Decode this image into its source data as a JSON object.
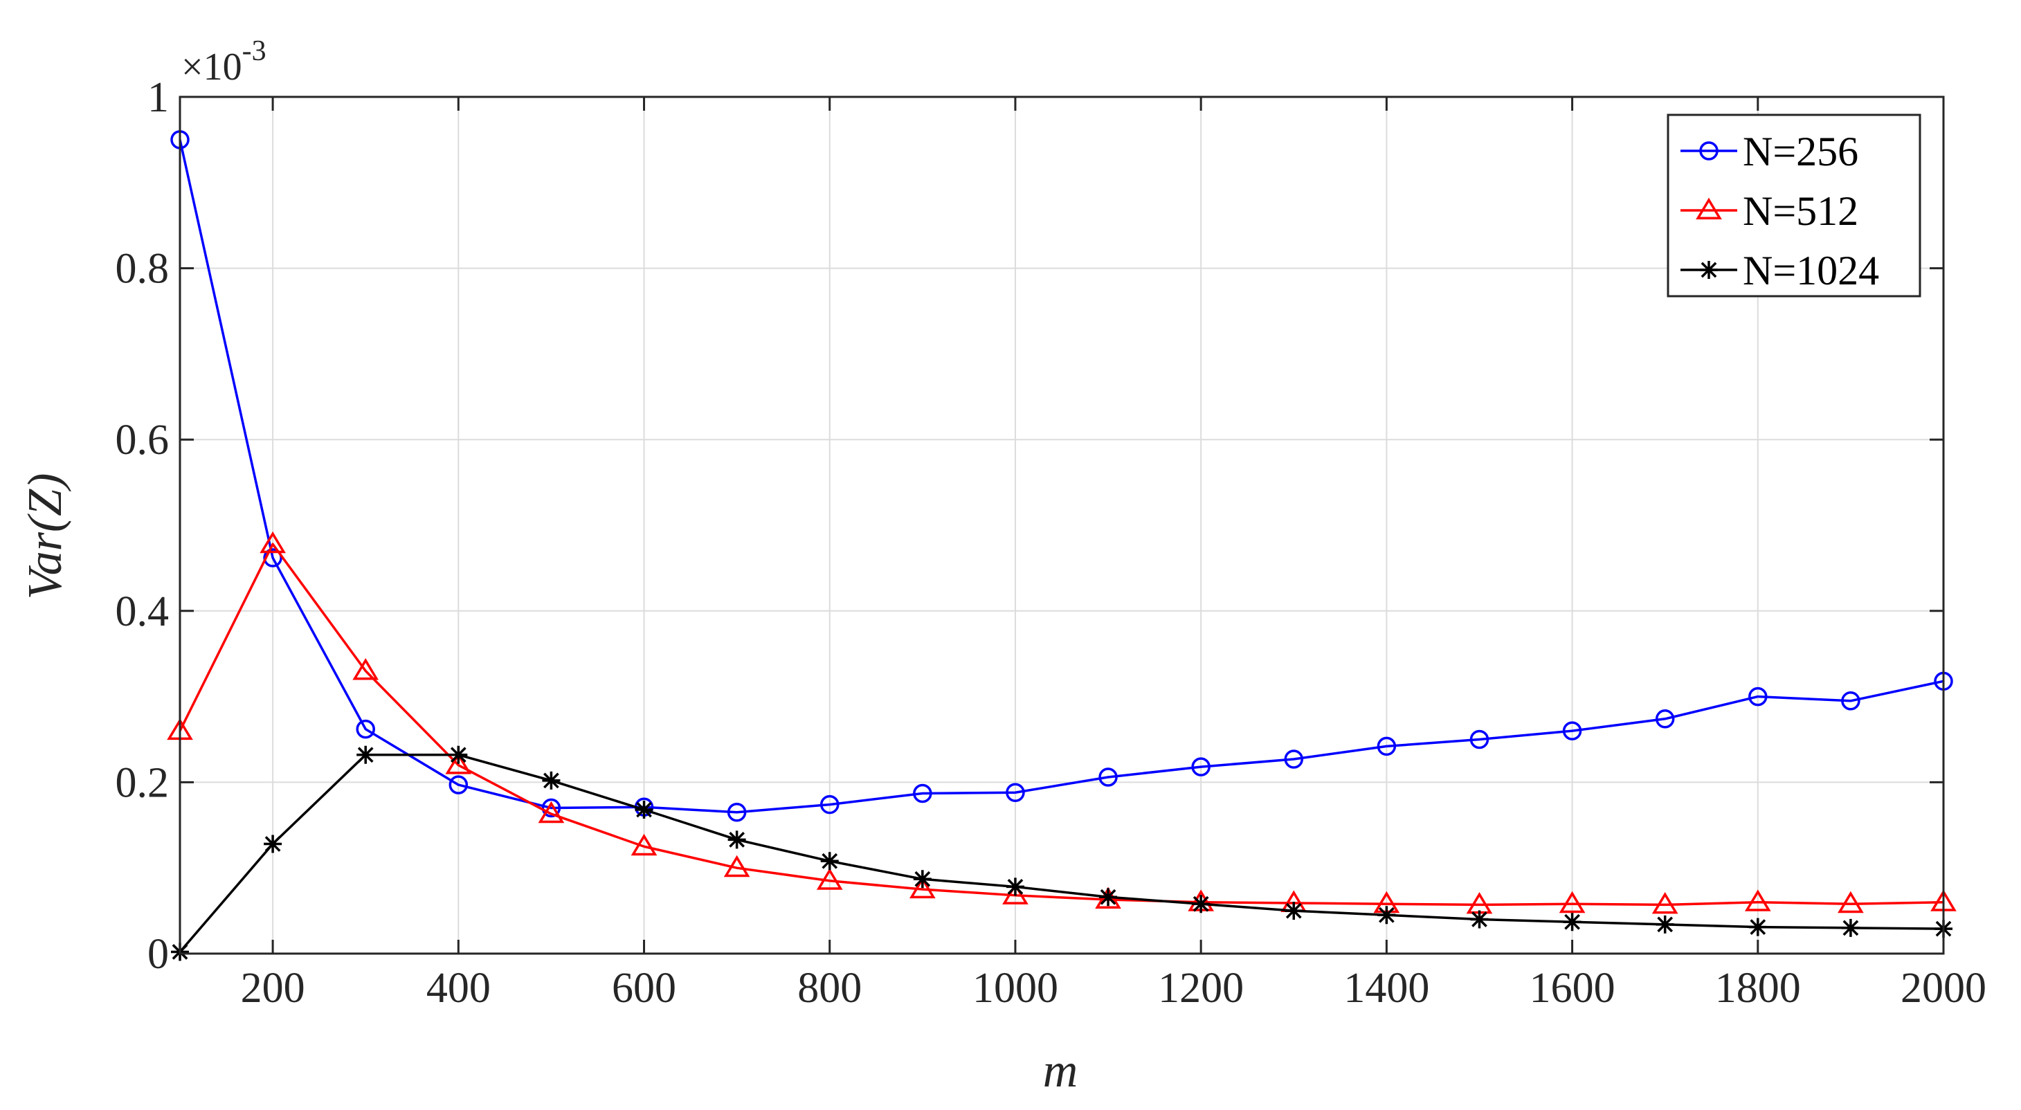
{
  "chart_data": {
    "type": "line",
    "xlabel": "m",
    "ylabel": "Var(Z)",
    "y_multiplier": "×10",
    "y_multiplier_exp": "-3",
    "xlim": [
      100,
      2000
    ],
    "ylim": [
      0,
      1
    ],
    "grid": true,
    "legend_position": "top-right",
    "x_ticks": [
      "200",
      "400",
      "600",
      "800",
      "1000",
      "1200",
      "1400",
      "1600",
      "1800",
      "2000"
    ],
    "x_tick_values": [
      200,
      400,
      600,
      800,
      1000,
      1200,
      1400,
      1600,
      1800,
      2000
    ],
    "y_ticks": [
      "0",
      "0.2",
      "0.4",
      "0.6",
      "0.8",
      "1"
    ],
    "y_tick_values": [
      0,
      0.2,
      0.4,
      0.6,
      0.8,
      1
    ],
    "x": [
      100,
      200,
      300,
      400,
      500,
      600,
      700,
      800,
      900,
      1000,
      1100,
      1200,
      1300,
      1400,
      1500,
      1600,
      1700,
      1800,
      1900,
      2000
    ],
    "series": [
      {
        "name": "N=256",
        "color": "#0000ff",
        "marker": "circle",
        "values": [
          0.95,
          0.462,
          0.262,
          0.197,
          0.17,
          0.171,
          0.165,
          0.174,
          0.187,
          0.188,
          0.206,
          0.218,
          0.227,
          0.242,
          0.25,
          0.26,
          0.274,
          0.3,
          0.295,
          0.318
        ]
      },
      {
        "name": "N=512",
        "color": "#ff0000",
        "marker": "triangle",
        "values": [
          0.26,
          0.478,
          0.33,
          0.22,
          0.163,
          0.125,
          0.1,
          0.085,
          0.075,
          0.068,
          0.063,
          0.06,
          0.059,
          0.058,
          0.057,
          0.058,
          0.057,
          0.06,
          0.058,
          0.06
        ]
      },
      {
        "name": "N=1024",
        "color": "#000000",
        "marker": "star",
        "values": [
          0.002,
          0.128,
          0.232,
          0.232,
          0.202,
          0.168,
          0.133,
          0.108,
          0.087,
          0.078,
          0.066,
          0.058,
          0.05,
          0.045,
          0.04,
          0.037,
          0.034,
          0.031,
          0.03,
          0.029
        ]
      }
    ]
  }
}
